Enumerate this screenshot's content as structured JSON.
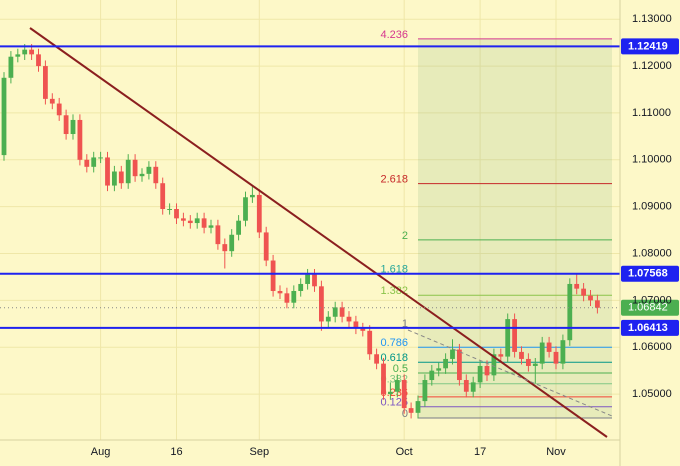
{
  "chart_data": {
    "type": "candlestick",
    "categories": [
      null,
      null,
      null,
      null,
      null,
      null,
      null,
      null,
      null,
      null,
      null,
      null,
      null,
      null,
      "Aug",
      null,
      null,
      null,
      null,
      null,
      null,
      null,
      null,
      null,
      null,
      "16",
      null,
      null,
      null,
      null,
      null,
      null,
      null,
      null,
      null,
      null,
      null,
      "Sep",
      null,
      null,
      null,
      null,
      null,
      null,
      null,
      null,
      null,
      null,
      null,
      null,
      null,
      null,
      null,
      null,
      null,
      null,
      null,
      null,
      "Oct",
      null,
      null,
      null,
      null,
      null,
      null,
      null,
      null,
      null,
      null,
      "17",
      null,
      null,
      null,
      null,
      null,
      null,
      null,
      null,
      null,
      null,
      "Nov",
      null,
      null,
      null,
      null,
      null,
      null
    ],
    "open": [
      1.101,
      1.1175,
      1.122,
      1.1225,
      1.1235,
      1.1225,
      1.12,
      1.113,
      1.112,
      1.1095,
      1.1055,
      1.1085,
      1.1,
      1.0985,
      1.1005,
      1.1005,
      1.0945,
      1.0975,
      1.095,
      1.1,
      1.0965,
      1.097,
      1.0985,
      1.095,
      1.0895,
      1.0895,
      1.0875,
      1.087,
      1.0865,
      1.0875,
      1.0855,
      1.086,
      1.082,
      1.0805,
      1.084,
      1.087,
      1.092,
      1.0925,
      1.0845,
      1.0785,
      1.072,
      1.0715,
      1.0695,
      1.072,
      1.0735,
      1.0755,
      1.073,
      1.0655,
      1.0665,
      1.0685,
      1.0665,
      1.0655,
      1.064,
      1.0635,
      1.0585,
      1.0565,
      1.05,
      1.0505,
      1.053,
      1.047,
      1.046,
      1.0485,
      1.053,
      1.055,
      1.0555,
      1.0575,
      1.0595,
      1.053,
      1.0505,
      1.0525,
      1.056,
      1.054,
      1.0585,
      1.058,
      1.066,
      1.059,
      1.0575,
      1.056,
      1.0565,
      1.061,
      1.059,
      1.0565,
      1.0615,
      1.0735,
      1.0725,
      1.071,
      1.07
    ],
    "high": [
      1.1187,
      1.1232,
      1.1237,
      1.1247,
      1.1247,
      1.1237,
      1.1212,
      1.1142,
      1.1132,
      1.1107,
      1.1097,
      1.1097,
      1.1012,
      1.1017,
      1.1017,
      1.1017,
      1.0987,
      1.0987,
      1.1012,
      1.1012,
      1.0982,
      1.0997,
      1.0997,
      1.0962,
      1.0907,
      1.0907,
      1.0887,
      1.0882,
      1.0887,
      1.0887,
      1.0872,
      1.0872,
      1.0832,
      1.0852,
      1.0882,
      1.0932,
      1.0945,
      1.0937,
      1.0857,
      1.0797,
      1.0732,
      1.0727,
      1.0732,
      1.0747,
      1.0767,
      1.0767,
      1.0742,
      1.0677,
      1.0697,
      1.0697,
      1.0677,
      1.0667,
      1.0652,
      1.0647,
      1.0597,
      1.0577,
      1.0525,
      1.0542,
      1.0542,
      1.0482,
      1.0497,
      1.0542,
      1.0562,
      1.0567,
      1.0587,
      1.0617,
      1.0607,
      1.0542,
      1.0537,
      1.0572,
      1.0572,
      1.0597,
      1.0597,
      1.0672,
      1.0672,
      1.0602,
      1.0587,
      1.0577,
      1.0622,
      1.0622,
      1.0602,
      1.0627,
      1.0747,
      1.0757,
      1.0737,
      1.0722,
      1.0712
    ],
    "low": [
      1.0998,
      1.1163,
      1.1208,
      1.1213,
      1.1213,
      1.1188,
      1.1118,
      1.1108,
      1.1083,
      1.1043,
      1.1043,
      1.0988,
      1.0973,
      1.0973,
      1.0993,
      1.0933,
      1.0933,
      1.0938,
      1.0938,
      1.0953,
      1.0953,
      1.0958,
      1.0938,
      1.0883,
      1.0883,
      1.0863,
      1.0858,
      1.0853,
      1.0853,
      1.0843,
      1.0843,
      1.0808,
      1.0768,
      1.0793,
      1.0828,
      1.0858,
      1.0908,
      1.0833,
      1.0773,
      1.0708,
      1.0703,
      1.0683,
      1.0683,
      1.0708,
      1.0723,
      1.0718,
      1.0635,
      1.0643,
      1.0653,
      1.0653,
      1.0643,
      1.0628,
      1.0623,
      1.0573,
      1.0553,
      1.0488,
      1.0488,
      1.0493,
      1.0458,
      1.0448,
      1.0448,
      1.0473,
      1.0518,
      1.0538,
      1.0543,
      1.0563,
      1.0518,
      1.0493,
      1.0493,
      1.0513,
      1.0528,
      1.0528,
      1.0568,
      1.0568,
      1.0578,
      1.0563,
      1.0548,
      1.0523,
      1.0553,
      1.0578,
      1.0553,
      1.0553,
      1.0603,
      1.0713,
      1.0698,
      1.0688,
      1.0672
    ],
    "close": [
      1.1175,
      1.122,
      1.1225,
      1.1235,
      1.1225,
      1.12,
      1.113,
      1.112,
      1.1095,
      1.1055,
      1.1085,
      1.1,
      1.0985,
      1.1005,
      1.1005,
      1.0945,
      1.0975,
      1.095,
      1.1,
      1.0965,
      1.097,
      1.0985,
      1.095,
      1.0895,
      1.0895,
      1.0875,
      1.087,
      1.0865,
      1.0875,
      1.0855,
      1.086,
      1.082,
      1.0805,
      1.084,
      1.087,
      1.092,
      1.0925,
      1.0845,
      1.0785,
      1.072,
      1.0715,
      1.0695,
      1.072,
      1.0735,
      1.0755,
      1.073,
      1.0655,
      1.0665,
      1.0685,
      1.0665,
      1.0655,
      1.064,
      1.0635,
      1.0585,
      1.0565,
      1.05,
      1.0505,
      1.053,
      1.047,
      1.046,
      1.0485,
      1.053,
      1.055,
      1.0555,
      1.0575,
      1.0595,
      1.053,
      1.0505,
      1.0525,
      1.056,
      1.054,
      1.0585,
      1.058,
      1.066,
      1.059,
      1.0575,
      1.056,
      1.0565,
      1.061,
      1.059,
      1.0565,
      1.0615,
      1.0735,
      1.0725,
      1.071,
      1.07,
      1.06842
    ],
    "up_color": "#4caf50",
    "down_color": "#ef5350",
    "ylim": [
      1.0402,
      1.1341
    ],
    "yticks": [
      {
        "value": 1.05,
        "label": "1.05000"
      },
      {
        "value": 1.06,
        "label": "1.06000"
      },
      {
        "value": 1.07,
        "label": "1.07000"
      },
      {
        "value": 1.08,
        "label": "1.08000"
      },
      {
        "value": 1.09,
        "label": "1.09000"
      },
      {
        "value": 1.1,
        "label": "1.10000"
      },
      {
        "value": 1.11,
        "label": "1.11000"
      },
      {
        "value": 1.12,
        "label": "1.12000"
      },
      {
        "value": 1.13,
        "label": "1.13000"
      }
    ],
    "grid": true,
    "levels": [
      1.12419,
      1.07568,
      1.06413
    ],
    "level_color": "#1e22f0",
    "fib_levels": [
      {
        "ratio": 4.236,
        "value": 1.1258,
        "color": "#d6368f"
      },
      {
        "ratio": 2.618,
        "value": 1.0949,
        "color": "#c62828"
      },
      {
        "ratio": 2,
        "value": 1.0829,
        "color": "#4caf50"
      },
      {
        "ratio": 1.618,
        "value": 1.0757,
        "color": "#26a69a"
      },
      {
        "ratio": 1.382,
        "value": 1.0711,
        "color": "#8bc34a"
      },
      {
        "ratio": 1,
        "value": 1.06413,
        "color": "#787b86"
      },
      {
        "ratio": 0.786,
        "value": 1.06,
        "color": "#2196f3"
      },
      {
        "ratio": 0.618,
        "value": 1.0568,
        "color": "#009688"
      },
      {
        "ratio": 0.5,
        "value": 1.0545,
        "color": "#4caf50"
      },
      {
        "ratio": 0.382,
        "value": 1.0522,
        "color": "#81c784"
      },
      {
        "ratio": 0.236,
        "value": 1.0494,
        "color": "#f44336"
      },
      {
        "ratio": 0.125,
        "value": 1.0473,
        "color": "#7e57c2"
      },
      {
        "ratio": 0,
        "value": 1.0449,
        "color": "#787b86"
      }
    ]
  }
}
